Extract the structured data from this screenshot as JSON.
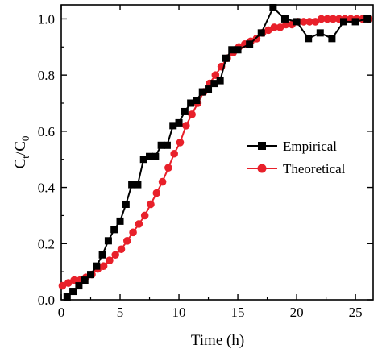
{
  "chart_data": {
    "type": "line",
    "xlabel": "Time (h)",
    "ylabel": "C",
    "ylabel_sub1": "t",
    "ylabel_mid": "/C",
    "ylabel_sub2": "0",
    "xlim": [
      0,
      26.5
    ],
    "ylim": [
      0,
      1.05
    ],
    "x_ticks": [
      0,
      5,
      10,
      15,
      20,
      25
    ],
    "y_ticks": [
      0.0,
      0.2,
      0.4,
      0.6,
      0.8,
      1.0
    ],
    "x_tick_labels": [
      "0",
      "5",
      "10",
      "15",
      "20",
      "25"
    ],
    "y_tick_labels": [
      "0.0",
      "0.2",
      "0.4",
      "0.6",
      "0.8",
      "1.0"
    ],
    "grid": false,
    "legend_position": "middle-right",
    "series": [
      {
        "name": "Empirical",
        "color": "#000000",
        "marker": "square",
        "points": [
          [
            0.5,
            0.01
          ],
          [
            1.0,
            0.03
          ],
          [
            1.5,
            0.05
          ],
          [
            2.0,
            0.07
          ],
          [
            2.5,
            0.09
          ],
          [
            3.0,
            0.12
          ],
          [
            3.5,
            0.16
          ],
          [
            4.0,
            0.21
          ],
          [
            4.5,
            0.25
          ],
          [
            5.0,
            0.28
          ],
          [
            5.5,
            0.34
          ],
          [
            6.0,
            0.41
          ],
          [
            6.5,
            0.41
          ],
          [
            7.0,
            0.5
          ],
          [
            7.5,
            0.51
          ],
          [
            8.0,
            0.51
          ],
          [
            8.5,
            0.55
          ],
          [
            9.0,
            0.55
          ],
          [
            9.5,
            0.62
          ],
          [
            10.0,
            0.63
          ],
          [
            10.5,
            0.67
          ],
          [
            11.0,
            0.7
          ],
          [
            11.5,
            0.71
          ],
          [
            12.0,
            0.74
          ],
          [
            12.5,
            0.75
          ],
          [
            13.0,
            0.77
          ],
          [
            13.5,
            0.78
          ],
          [
            14.0,
            0.86
          ],
          [
            14.5,
            0.89
          ],
          [
            15.0,
            0.89
          ],
          [
            16.0,
            0.91
          ],
          [
            17.0,
            0.95
          ],
          [
            18.0,
            1.04
          ],
          [
            19.0,
            1.0
          ],
          [
            20.0,
            0.99
          ],
          [
            21.0,
            0.93
          ],
          [
            22.0,
            0.95
          ],
          [
            23.0,
            0.93
          ],
          [
            24.0,
            0.99
          ],
          [
            25.0,
            0.99
          ],
          [
            26.0,
            1.0
          ]
        ]
      },
      {
        "name": "Theoretical",
        "color": "#e8202a",
        "marker": "circle",
        "points": [
          [
            0.1,
            0.05
          ],
          [
            0.6,
            0.06
          ],
          [
            1.1,
            0.07
          ],
          [
            1.6,
            0.07
          ],
          [
            2.1,
            0.08
          ],
          [
            2.6,
            0.09
          ],
          [
            3.1,
            0.11
          ],
          [
            3.6,
            0.12
          ],
          [
            4.1,
            0.14
          ],
          [
            4.6,
            0.16
          ],
          [
            5.1,
            0.18
          ],
          [
            5.6,
            0.21
          ],
          [
            6.1,
            0.24
          ],
          [
            6.6,
            0.27
          ],
          [
            7.1,
            0.3
          ],
          [
            7.6,
            0.34
          ],
          [
            8.1,
            0.38
          ],
          [
            8.6,
            0.42
          ],
          [
            9.1,
            0.47
          ],
          [
            9.6,
            0.52
          ],
          [
            10.1,
            0.56
          ],
          [
            10.6,
            0.62
          ],
          [
            11.1,
            0.66
          ],
          [
            11.6,
            0.7
          ],
          [
            12.1,
            0.74
          ],
          [
            12.6,
            0.77
          ],
          [
            13.1,
            0.8
          ],
          [
            13.6,
            0.83
          ],
          [
            14.1,
            0.86
          ],
          [
            14.6,
            0.88
          ],
          [
            15.1,
            0.9
          ],
          [
            15.6,
            0.91
          ],
          [
            16.1,
            0.92
          ],
          [
            16.6,
            0.93
          ],
          [
            17.1,
            0.95
          ],
          [
            17.6,
            0.96
          ],
          [
            18.1,
            0.97
          ],
          [
            18.6,
            0.97
          ],
          [
            19.1,
            0.98
          ],
          [
            19.6,
            0.98
          ],
          [
            20.1,
            0.99
          ],
          [
            20.6,
            0.99
          ],
          [
            21.1,
            0.99
          ],
          [
            21.6,
            0.99
          ],
          [
            22.1,
            1.0
          ],
          [
            22.6,
            1.0
          ],
          [
            23.1,
            1.0
          ],
          [
            23.6,
            1.0
          ],
          [
            24.1,
            1.0
          ],
          [
            24.6,
            1.0
          ],
          [
            25.1,
            1.0
          ],
          [
            25.6,
            1.0
          ],
          [
            26.1,
            1.0
          ]
        ]
      }
    ]
  }
}
